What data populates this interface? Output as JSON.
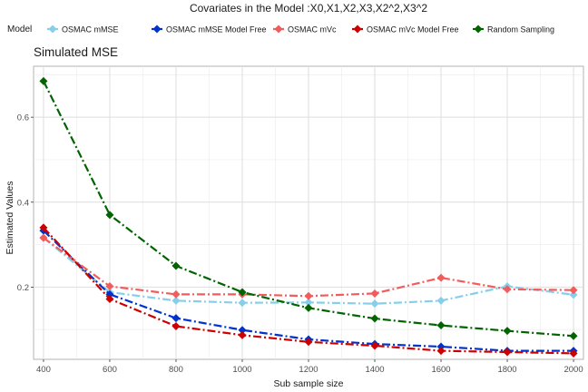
{
  "chart_data": {
    "type": "line",
    "title": "Covariates in the Model :X0,X1,X2,X3,X2^2,X3^2",
    "subtitle": "Simulated MSE",
    "xlabel": "Sub sample size",
    "ylabel": "Estimated Values",
    "legend_title": "Model",
    "legend_position": "top",
    "grid": true,
    "xlim": [
      370,
      2030
    ],
    "ylim": [
      0.03,
      0.72
    ],
    "x": [
      400,
      600,
      800,
      1000,
      1200,
      1400,
      1600,
      1800,
      2000
    ],
    "x_ticks": [
      400,
      600,
      800,
      1000,
      1200,
      1400,
      1600,
      1800,
      2000
    ],
    "y_ticks": [
      0.2,
      0.4,
      0.6
    ],
    "y_tick_labels": [
      "0.2",
      "0.4",
      "0.6"
    ],
    "series": [
      {
        "name": "OSMAC mMSE",
        "color": "#87CEEB",
        "marker": "diamond",
        "values": [
          0.316,
          0.188,
          0.168,
          0.163,
          0.164,
          0.161,
          0.168,
          0.202,
          0.182
        ]
      },
      {
        "name": "OSMAC mMSE Model Free",
        "color": "#0033CC",
        "marker": "diamond",
        "values": [
          0.333,
          0.183,
          0.127,
          0.099,
          0.077,
          0.066,
          0.06,
          0.05,
          0.05
        ]
      },
      {
        "name": "OSMAC mVc",
        "color": "#F25C5C",
        "marker": "diamond",
        "values": [
          0.316,
          0.202,
          0.183,
          0.183,
          0.179,
          0.185,
          0.222,
          0.195,
          0.193
        ]
      },
      {
        "name": "OSMAC mVc Model Free",
        "color": "#CC0000",
        "marker": "diamond",
        "values": [
          0.34,
          0.172,
          0.108,
          0.087,
          0.071,
          0.062,
          0.05,
          0.047,
          0.044
        ]
      },
      {
        "name": "Random Sampling",
        "color": "#006400",
        "marker": "diamond",
        "values": [
          0.685,
          0.37,
          0.25,
          0.188,
          0.151,
          0.126,
          0.11,
          0.097,
          0.085
        ]
      }
    ]
  }
}
